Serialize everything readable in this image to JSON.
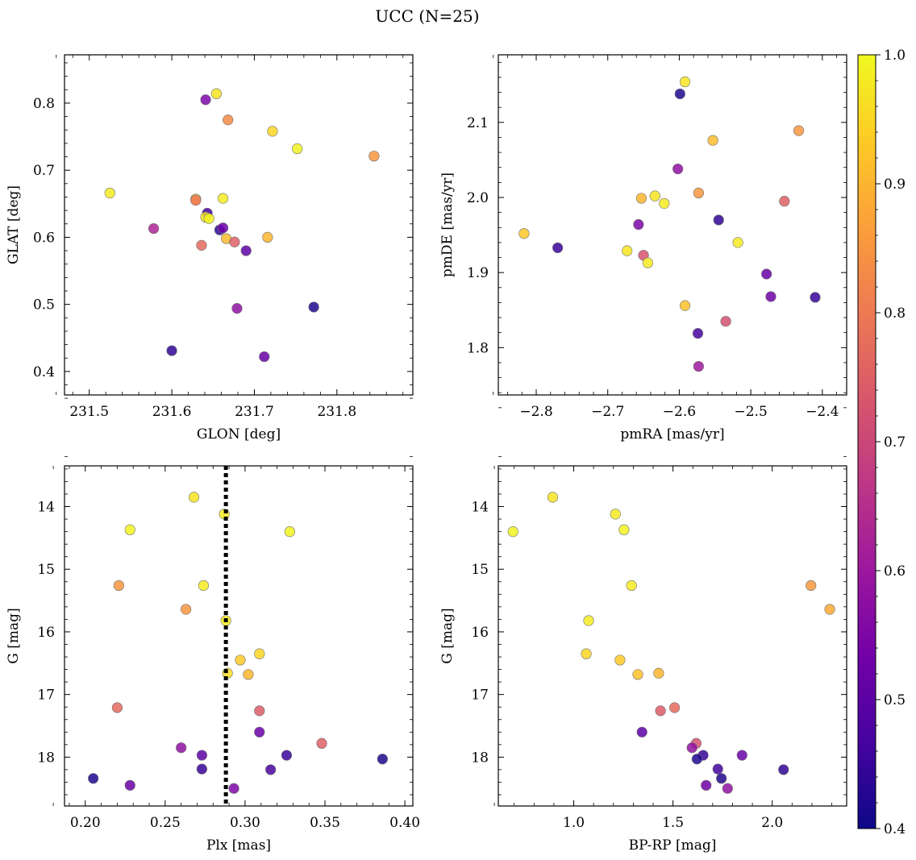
{
  "figure": {
    "title": "UCC (N=25)"
  },
  "colorbar": {
    "range": [
      0.4,
      1.0
    ],
    "ticks": [
      0.4,
      0.5,
      0.6,
      0.7,
      0.8,
      0.9,
      1.0
    ],
    "tick_labels": [
      "0.4",
      "0.5",
      "0.6",
      "0.7",
      "0.8",
      "0.9",
      "1.0"
    ],
    "colormap": "plasma",
    "stops": [
      "#0d0887",
      "#46039f",
      "#7201a8",
      "#9c179e",
      "#bd3786",
      "#d8576b",
      "#ed7953",
      "#fb9f3a",
      "#fdca26",
      "#f0f921"
    ]
  },
  "chart_data": [
    {
      "type": "scatter",
      "xlabel": "GLON [deg]",
      "ylabel": "GLAT [deg]",
      "xlim": [
        231.47,
        231.892
      ],
      "ylim": [
        0.365,
        0.872
      ],
      "xticks": [
        231.5,
        231.6,
        231.7,
        231.8
      ],
      "xtick_labels": [
        "231.5",
        "231.6",
        "231.7",
        "231.8"
      ],
      "yticks": [
        0.4,
        0.5,
        0.6,
        0.7,
        0.8
      ],
      "ytick_labels": [
        "0.4",
        "0.5",
        "0.6",
        "0.7",
        "0.8"
      ],
      "points": [
        {
          "x": 231.654,
          "y": 0.814,
          "c": 0.97
        },
        {
          "x": 231.641,
          "y": 0.805,
          "c": 0.55
        },
        {
          "x": 231.668,
          "y": 0.775,
          "c": 0.83
        },
        {
          "x": 231.722,
          "y": 0.758,
          "c": 0.95
        },
        {
          "x": 231.752,
          "y": 0.732,
          "c": 0.99
        },
        {
          "x": 231.845,
          "y": 0.721,
          "c": 0.85
        },
        {
          "x": 231.525,
          "y": 0.666,
          "c": 0.98
        },
        {
          "x": 231.629,
          "y": 0.657,
          "c": 0.9
        },
        {
          "x": 231.629,
          "y": 0.655,
          "c": 0.8
        },
        {
          "x": 231.662,
          "y": 0.658,
          "c": 0.98
        },
        {
          "x": 231.643,
          "y": 0.636,
          "c": 0.47
        },
        {
          "x": 231.641,
          "y": 0.63,
          "c": 0.97
        },
        {
          "x": 231.645,
          "y": 0.628,
          "c": 0.99
        },
        {
          "x": 231.578,
          "y": 0.613,
          "c": 0.63
        },
        {
          "x": 231.658,
          "y": 0.611,
          "c": 0.44
        },
        {
          "x": 231.662,
          "y": 0.614,
          "c": 0.53
        },
        {
          "x": 231.636,
          "y": 0.588,
          "c": 0.77
        },
        {
          "x": 231.666,
          "y": 0.598,
          "c": 0.91
        },
        {
          "x": 231.676,
          "y": 0.593,
          "c": 0.75
        },
        {
          "x": 231.716,
          "y": 0.6,
          "c": 0.9
        },
        {
          "x": 231.69,
          "y": 0.58,
          "c": 0.5
        },
        {
          "x": 231.679,
          "y": 0.494,
          "c": 0.58
        },
        {
          "x": 231.772,
          "y": 0.496,
          "c": 0.42
        },
        {
          "x": 231.6,
          "y": 0.431,
          "c": 0.44
        },
        {
          "x": 231.712,
          "y": 0.422,
          "c": 0.52
        }
      ]
    },
    {
      "type": "scatter",
      "xlabel": "pmRA [mas/yr]",
      "ylabel": "pmDE [mas/yr]",
      "xlim": [
        -2.853,
        -2.366
      ],
      "ylim": [
        1.737,
        2.19
      ],
      "xticks": [
        -2.8,
        -2.7,
        -2.6,
        -2.5,
        -2.4
      ],
      "xtick_labels": [
        "−2.8",
        "−2.7",
        "−2.6",
        "−2.5",
        "−2.4"
      ],
      "yticks": [
        1.8,
        1.9,
        2.0,
        2.1
      ],
      "ytick_labels": [
        "1.8",
        "1.9",
        "2.0",
        "2.1"
      ],
      "points": [
        {
          "x": -2.592,
          "y": 2.154,
          "c": 0.97
        },
        {
          "x": -2.599,
          "y": 2.138,
          "c": 0.42
        },
        {
          "x": -2.433,
          "y": 2.089,
          "c": 0.85
        },
        {
          "x": -2.553,
          "y": 2.076,
          "c": 0.91
        },
        {
          "x": -2.602,
          "y": 2.038,
          "c": 0.58
        },
        {
          "x": -2.573,
          "y": 2.006,
          "c": 0.85
        },
        {
          "x": -2.653,
          "y": 1.999,
          "c": 0.9
        },
        {
          "x": -2.634,
          "y": 2.002,
          "c": 0.97
        },
        {
          "x": -2.621,
          "y": 1.992,
          "c": 0.98
        },
        {
          "x": -2.453,
          "y": 1.995,
          "c": 0.75
        },
        {
          "x": -2.545,
          "y": 1.97,
          "c": 0.44
        },
        {
          "x": -2.657,
          "y": 1.964,
          "c": 0.55
        },
        {
          "x": -2.817,
          "y": 1.952,
          "c": 0.93
        },
        {
          "x": -2.77,
          "y": 1.933,
          "c": 0.45
        },
        {
          "x": -2.518,
          "y": 1.94,
          "c": 0.98
        },
        {
          "x": -2.673,
          "y": 1.929,
          "c": 0.97
        },
        {
          "x": -2.65,
          "y": 1.923,
          "c": 0.73
        },
        {
          "x": -2.644,
          "y": 1.913,
          "c": 0.98
        },
        {
          "x": -2.478,
          "y": 1.898,
          "c": 0.52
        },
        {
          "x": -2.472,
          "y": 1.868,
          "c": 0.53
        },
        {
          "x": -2.41,
          "y": 1.867,
          "c": 0.45
        },
        {
          "x": -2.592,
          "y": 1.856,
          "c": 0.92
        },
        {
          "x": -2.535,
          "y": 1.835,
          "c": 0.72
        },
        {
          "x": -2.574,
          "y": 1.819,
          "c": 0.47
        },
        {
          "x": -2.573,
          "y": 1.775,
          "c": 0.6
        }
      ]
    },
    {
      "type": "scatter",
      "xlabel": "Plx [mas]",
      "ylabel": "G [mag]",
      "xlim": [
        0.187,
        0.405
      ],
      "ylim": [
        18.78,
        13.35
      ],
      "y_inverted": true,
      "vline": 0.288,
      "xticks": [
        0.2,
        0.25,
        0.3,
        0.35,
        0.4
      ],
      "xtick_labels": [
        "0.20",
        "0.25",
        "0.30",
        "0.35",
        "0.40"
      ],
      "yticks": [
        14,
        15,
        16,
        17,
        18
      ],
      "ytick_labels": [
        "14",
        "15",
        "16",
        "17",
        "18"
      ],
      "points": [
        {
          "x": 0.268,
          "y": 13.85,
          "c": 0.97
        },
        {
          "x": 0.287,
          "y": 14.12,
          "c": 0.98
        },
        {
          "x": 0.228,
          "y": 14.37,
          "c": 0.99
        },
        {
          "x": 0.328,
          "y": 14.4,
          "c": 0.99
        },
        {
          "x": 0.221,
          "y": 15.26,
          "c": 0.85
        },
        {
          "x": 0.274,
          "y": 15.26,
          "c": 0.98
        },
        {
          "x": 0.263,
          "y": 15.64,
          "c": 0.85
        },
        {
          "x": 0.288,
          "y": 15.82,
          "c": 0.98
        },
        {
          "x": 0.309,
          "y": 16.35,
          "c": 0.95
        },
        {
          "x": 0.297,
          "y": 16.45,
          "c": 0.93
        },
        {
          "x": 0.289,
          "y": 16.66,
          "c": 0.96
        },
        {
          "x": 0.302,
          "y": 16.68,
          "c": 0.9
        },
        {
          "x": 0.22,
          "y": 17.21,
          "c": 0.77
        },
        {
          "x": 0.309,
          "y": 17.26,
          "c": 0.74
        },
        {
          "x": 0.309,
          "y": 17.6,
          "c": 0.52
        },
        {
          "x": 0.348,
          "y": 17.78,
          "c": 0.75
        },
        {
          "x": 0.26,
          "y": 17.85,
          "c": 0.58
        },
        {
          "x": 0.273,
          "y": 17.97,
          "c": 0.5
        },
        {
          "x": 0.326,
          "y": 17.97,
          "c": 0.45
        },
        {
          "x": 0.386,
          "y": 18.03,
          "c": 0.42
        },
        {
          "x": 0.273,
          "y": 18.19,
          "c": 0.45
        },
        {
          "x": 0.316,
          "y": 18.2,
          "c": 0.47
        },
        {
          "x": 0.205,
          "y": 18.34,
          "c": 0.42
        },
        {
          "x": 0.228,
          "y": 18.45,
          "c": 0.52
        },
        {
          "x": 0.293,
          "y": 18.5,
          "c": 0.55
        }
      ]
    },
    {
      "type": "scatter",
      "xlabel": "BP-RP [mag]",
      "ylabel": "G [mag]",
      "xlim": [
        0.62,
        2.375
      ],
      "ylim": [
        18.78,
        13.35
      ],
      "y_inverted": true,
      "xticks": [
        1.0,
        1.5,
        2.0
      ],
      "xtick_labels": [
        "1.0",
        "1.5",
        "2.0"
      ],
      "yticks": [
        14,
        15,
        16,
        17,
        18
      ],
      "ytick_labels": [
        "14",
        "15",
        "16",
        "17",
        "18"
      ],
      "points": [
        {
          "x": 0.894,
          "y": 13.85,
          "c": 0.97
        },
        {
          "x": 1.21,
          "y": 14.12,
          "c": 0.98
        },
        {
          "x": 1.253,
          "y": 14.37,
          "c": 0.99
        },
        {
          "x": 0.694,
          "y": 14.4,
          "c": 0.99
        },
        {
          "x": 2.195,
          "y": 15.26,
          "c": 0.85
        },
        {
          "x": 1.291,
          "y": 15.26,
          "c": 0.98
        },
        {
          "x": 2.29,
          "y": 15.64,
          "c": 0.88
        },
        {
          "x": 1.075,
          "y": 15.82,
          "c": 0.98
        },
        {
          "x": 1.063,
          "y": 16.35,
          "c": 0.95
        },
        {
          "x": 1.233,
          "y": 16.45,
          "c": 0.93
        },
        {
          "x": 1.428,
          "y": 16.66,
          "c": 0.9
        },
        {
          "x": 1.323,
          "y": 16.68,
          "c": 0.92
        },
        {
          "x": 1.508,
          "y": 17.21,
          "c": 0.77
        },
        {
          "x": 1.437,
          "y": 17.26,
          "c": 0.74
        },
        {
          "x": 1.344,
          "y": 17.6,
          "c": 0.5
        },
        {
          "x": 1.617,
          "y": 17.78,
          "c": 0.72
        },
        {
          "x": 1.596,
          "y": 17.85,
          "c": 0.58
        },
        {
          "x": 1.652,
          "y": 17.97,
          "c": 0.45
        },
        {
          "x": 1.848,
          "y": 17.97,
          "c": 0.52
        },
        {
          "x": 1.621,
          "y": 18.03,
          "c": 0.42
        },
        {
          "x": 1.726,
          "y": 18.19,
          "c": 0.46
        },
        {
          "x": 2.057,
          "y": 18.2,
          "c": 0.44
        },
        {
          "x": 1.744,
          "y": 18.34,
          "c": 0.42
        },
        {
          "x": 1.667,
          "y": 18.45,
          "c": 0.53
        },
        {
          "x": 1.775,
          "y": 18.5,
          "c": 0.58
        }
      ]
    }
  ]
}
